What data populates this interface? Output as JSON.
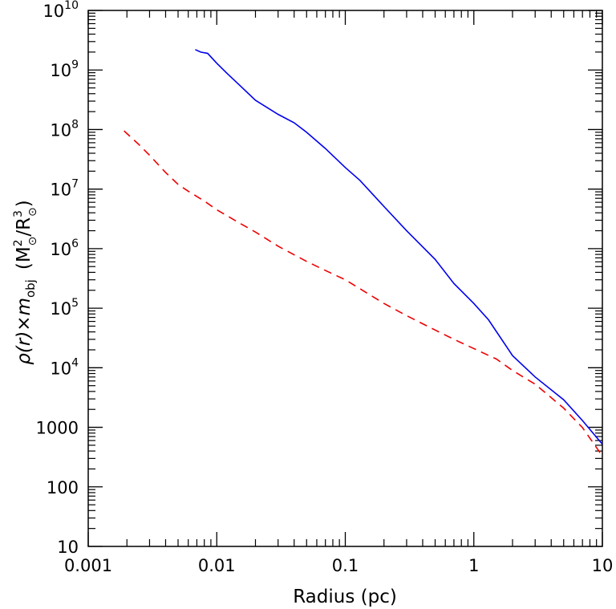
{
  "chart_data": {
    "type": "line",
    "xlabel": "Radius (pc)",
    "ylabel": {
      "main": "ρ(r)×m",
      "main_sub": "obj",
      "units_open": "(M",
      "units_sup": "2",
      "units_sub": "⊙",
      "units_mid": "/R",
      "units_sup2": "3",
      "units_sub2": "⊙",
      "units_close": ")"
    },
    "x_scale": "log",
    "y_scale": "log",
    "xlim": [
      0.001,
      10
    ],
    "ylim": [
      10,
      10000000000
    ],
    "grid": false,
    "x_ticks": [
      {
        "value": 0.001,
        "label": "0.001"
      },
      {
        "value": 0.01,
        "label": "0.01"
      },
      {
        "value": 0.1,
        "label": "0.1"
      },
      {
        "value": 1,
        "label": "1"
      },
      {
        "value": 10,
        "label": "10"
      }
    ],
    "y_ticks": [
      {
        "value": 10,
        "label": "10"
      },
      {
        "value": 100,
        "label": "100"
      },
      {
        "value": 1000,
        "label": "1000"
      },
      {
        "value": 10000,
        "base": "10",
        "exp": "4"
      },
      {
        "value": 100000,
        "base": "10",
        "exp": "5"
      },
      {
        "value": 1000000,
        "base": "10",
        "exp": "6"
      },
      {
        "value": 10000000,
        "base": "10",
        "exp": "7"
      },
      {
        "value": 100000000,
        "base": "10",
        "exp": "8"
      },
      {
        "value": 1000000000,
        "base": "10",
        "exp": "9"
      },
      {
        "value": 10000000000,
        "base": "10",
        "exp": "10"
      }
    ],
    "series": [
      {
        "color": "#0000ee",
        "dash": "solid",
        "x": [
          0.0068,
          0.0075,
          0.0085,
          0.01,
          0.012,
          0.015,
          0.02,
          0.03,
          0.04,
          0.05,
          0.07,
          0.1,
          0.13,
          0.2,
          0.3,
          0.5,
          0.7,
          1,
          1.3,
          2,
          3,
          5,
          7,
          10
        ],
        "y": [
          2200000000,
          2000000000,
          1900000000,
          1300000000,
          880000000,
          560000000,
          310000000,
          180000000,
          130000000,
          90000000,
          48000000,
          23000000,
          14000000,
          5100000,
          2000000,
          660000,
          260000,
          120000,
          64000,
          16000,
          7000,
          2900,
          1300,
          520
        ]
      },
      {
        "color": "#ee0000",
        "dash": "dashed",
        "x": [
          0.0019,
          0.0025,
          0.003,
          0.004,
          0.005,
          0.006,
          0.008,
          0.01,
          0.015,
          0.02,
          0.03,
          0.05,
          0.07,
          0.1,
          0.2,
          0.3,
          0.5,
          0.7,
          1,
          1.5,
          2,
          3,
          5,
          7,
          10
        ],
        "y": [
          95000000,
          55000000,
          37000000,
          19000000,
          12000000,
          9200000,
          6300000,
          4500000,
          2700000,
          1900000,
          1100000,
          610000,
          430000,
          300000,
          120000,
          75000,
          43000,
          30000,
          21000,
          14000,
          9000,
          5300,
          2100,
          990,
          330
        ]
      }
    ]
  }
}
